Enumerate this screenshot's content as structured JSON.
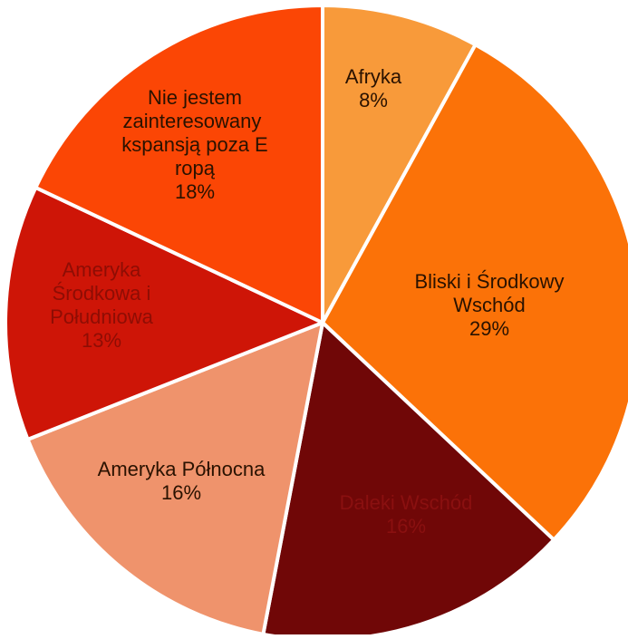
{
  "chart_data": {
    "type": "pie",
    "title": "",
    "slices": [
      {
        "label": "Afryka",
        "value": 8,
        "value_label": "8%",
        "color": "#f89a3a",
        "text_color": "#2a1200"
      },
      {
        "label": "Bliski i Środkowy Wschód",
        "value": 29,
        "value_label": "29%",
        "color": "#fb7208",
        "text_color": "#2a1200"
      },
      {
        "label": "Daleki Wschód",
        "value": 16,
        "value_label": "16%",
        "color": "#700707",
        "text_color": "#8a1010"
      },
      {
        "label": "Ameryka Północna",
        "value": 16,
        "value_label": "16%",
        "color": "#ef936c",
        "text_color": "#2a1200"
      },
      {
        "label": "Ameryka Środkowa i Południowa",
        "value": 13,
        "value_label": "13%",
        "color": "#ce1507",
        "text_color": "#8e0d04"
      },
      {
        "label": "Nie jestem zainteresowany ekspansją poza Europą",
        "value": 18,
        "value_label": "18%",
        "color": "#fb4605",
        "text_color": "#2a1200"
      }
    ],
    "slice_border_color": "#ffffff",
    "start": "top",
    "direction": "clockwise",
    "legend": "none"
  }
}
